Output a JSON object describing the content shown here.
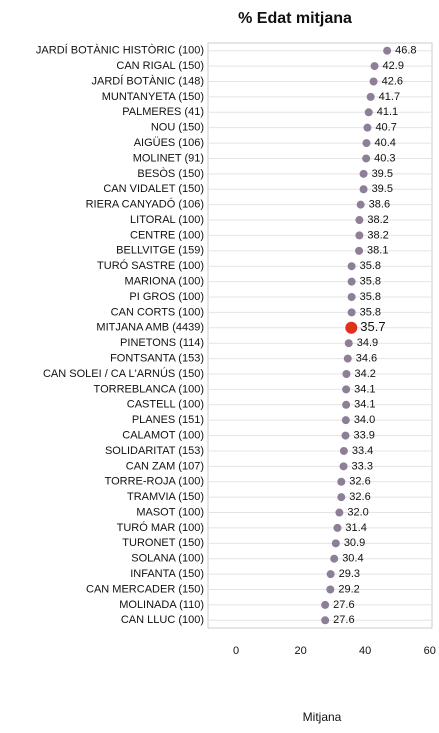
{
  "chart_data": {
    "type": "dot",
    "title": "% Edat mitjana",
    "x_label": "Mitjana",
    "categories": [
      "JARDÍ BOTÀNIC HISTÒRIC (100)",
      "CAN RIGAL (150)",
      "JARDÍ BOTÀNIC (148)",
      "MUNTANYETA (150)",
      "PALMERES (41)",
      "NOU (150)",
      "AIGÜES (106)",
      "MOLINET (91)",
      "BESÒS (150)",
      "CAN VIDALET (150)",
      "RIERA CANYADÓ (106)",
      "LITORAL (100)",
      "CENTRE (100)",
      "BELLVITGE (159)",
      "TURÓ SASTRE (100)",
      "MARIONA (100)",
      "PI GROS (100)",
      "CAN CORTS (100)",
      "MITJANA AMB (4439)",
      "PINETONS (114)",
      "FONTSANTA (153)",
      "CAN SOLEI / CA L'ARNÚS (150)",
      "TORREBLANCA (100)",
      "CASTELL (100)",
      "PLANES (151)",
      "CALAMOT (100)",
      "SOLIDARITAT (153)",
      "CAN ZAM (107)",
      "TORRE-ROJA (100)",
      "TRAMVIA (150)",
      "MASOT (100)",
      "TURÓ MAR (100)",
      "TURONET (150)",
      "SOLANA (100)",
      "INFANTA (150)",
      "CAN MERCADER (150)",
      "MOLINADA (110)",
      "CAN LLUC (100)"
    ],
    "values": [
      46.8,
      42.9,
      42.6,
      41.7,
      41.1,
      40.7,
      40.4,
      40.3,
      39.5,
      39.5,
      38.6,
      38.2,
      38.2,
      38.1,
      35.8,
      35.8,
      35.8,
      35.8,
      35.7,
      34.9,
      34.6,
      34.2,
      34.1,
      34.1,
      34.0,
      33.9,
      33.4,
      33.3,
      32.6,
      32.6,
      32.0,
      31.4,
      30.9,
      30.4,
      29.3,
      29.2,
      27.6,
      27.6
    ],
    "value_labels": [
      "46.8",
      "42.9",
      "42.6",
      "41.7",
      "41.1",
      "40.7",
      "40.4",
      "40.3",
      "39.5",
      "39.5",
      "38.6",
      "38.2",
      "38.2",
      "38.1",
      "35.8",
      "35.8",
      "35.8",
      "35.8",
      "35.7",
      "34.9",
      "34.6",
      "34.2",
      "34.1",
      "34.1",
      "34.0",
      "33.9",
      "33.4",
      "33.3",
      "32.6",
      "32.6",
      "32.0",
      "31.4",
      "30.9",
      "30.4",
      "29.3",
      "29.2",
      "27.6",
      "27.6"
    ],
    "color": "#8c7f96",
    "colors": [
      "#8c7f96",
      "#8c7f96",
      "#8c7f96",
      "#8c7f96",
      "#8c7f96",
      "#8c7f96",
      "#8c7f96",
      "#8c7f96",
      "#8c7f96",
      "#8c7f96",
      "#8c7f96",
      "#8c7f96",
      "#8c7f96",
      "#8c7f96",
      "#8c7f96",
      "#8c7f96",
      "#8c7f96",
      "#8c7f96",
      "#e0301e",
      "#8c7f96",
      "#8c7f96",
      "#8c7f96",
      "#8c7f96",
      "#8c7f96",
      "#8c7f96",
      "#8c7f96",
      "#8c7f96",
      "#8c7f96",
      "#8c7f96",
      "#8c7f96",
      "#8c7f96",
      "#8c7f96",
      "#8c7f96",
      "#8c7f96",
      "#8c7f96",
      "#8c7f96",
      "#8c7f96",
      "#8c7f96"
    ],
    "xlim": [
      -8.7,
      60.7
    ],
    "xticks": [
      0,
      20,
      40,
      60
    ],
    "grid": true
  }
}
